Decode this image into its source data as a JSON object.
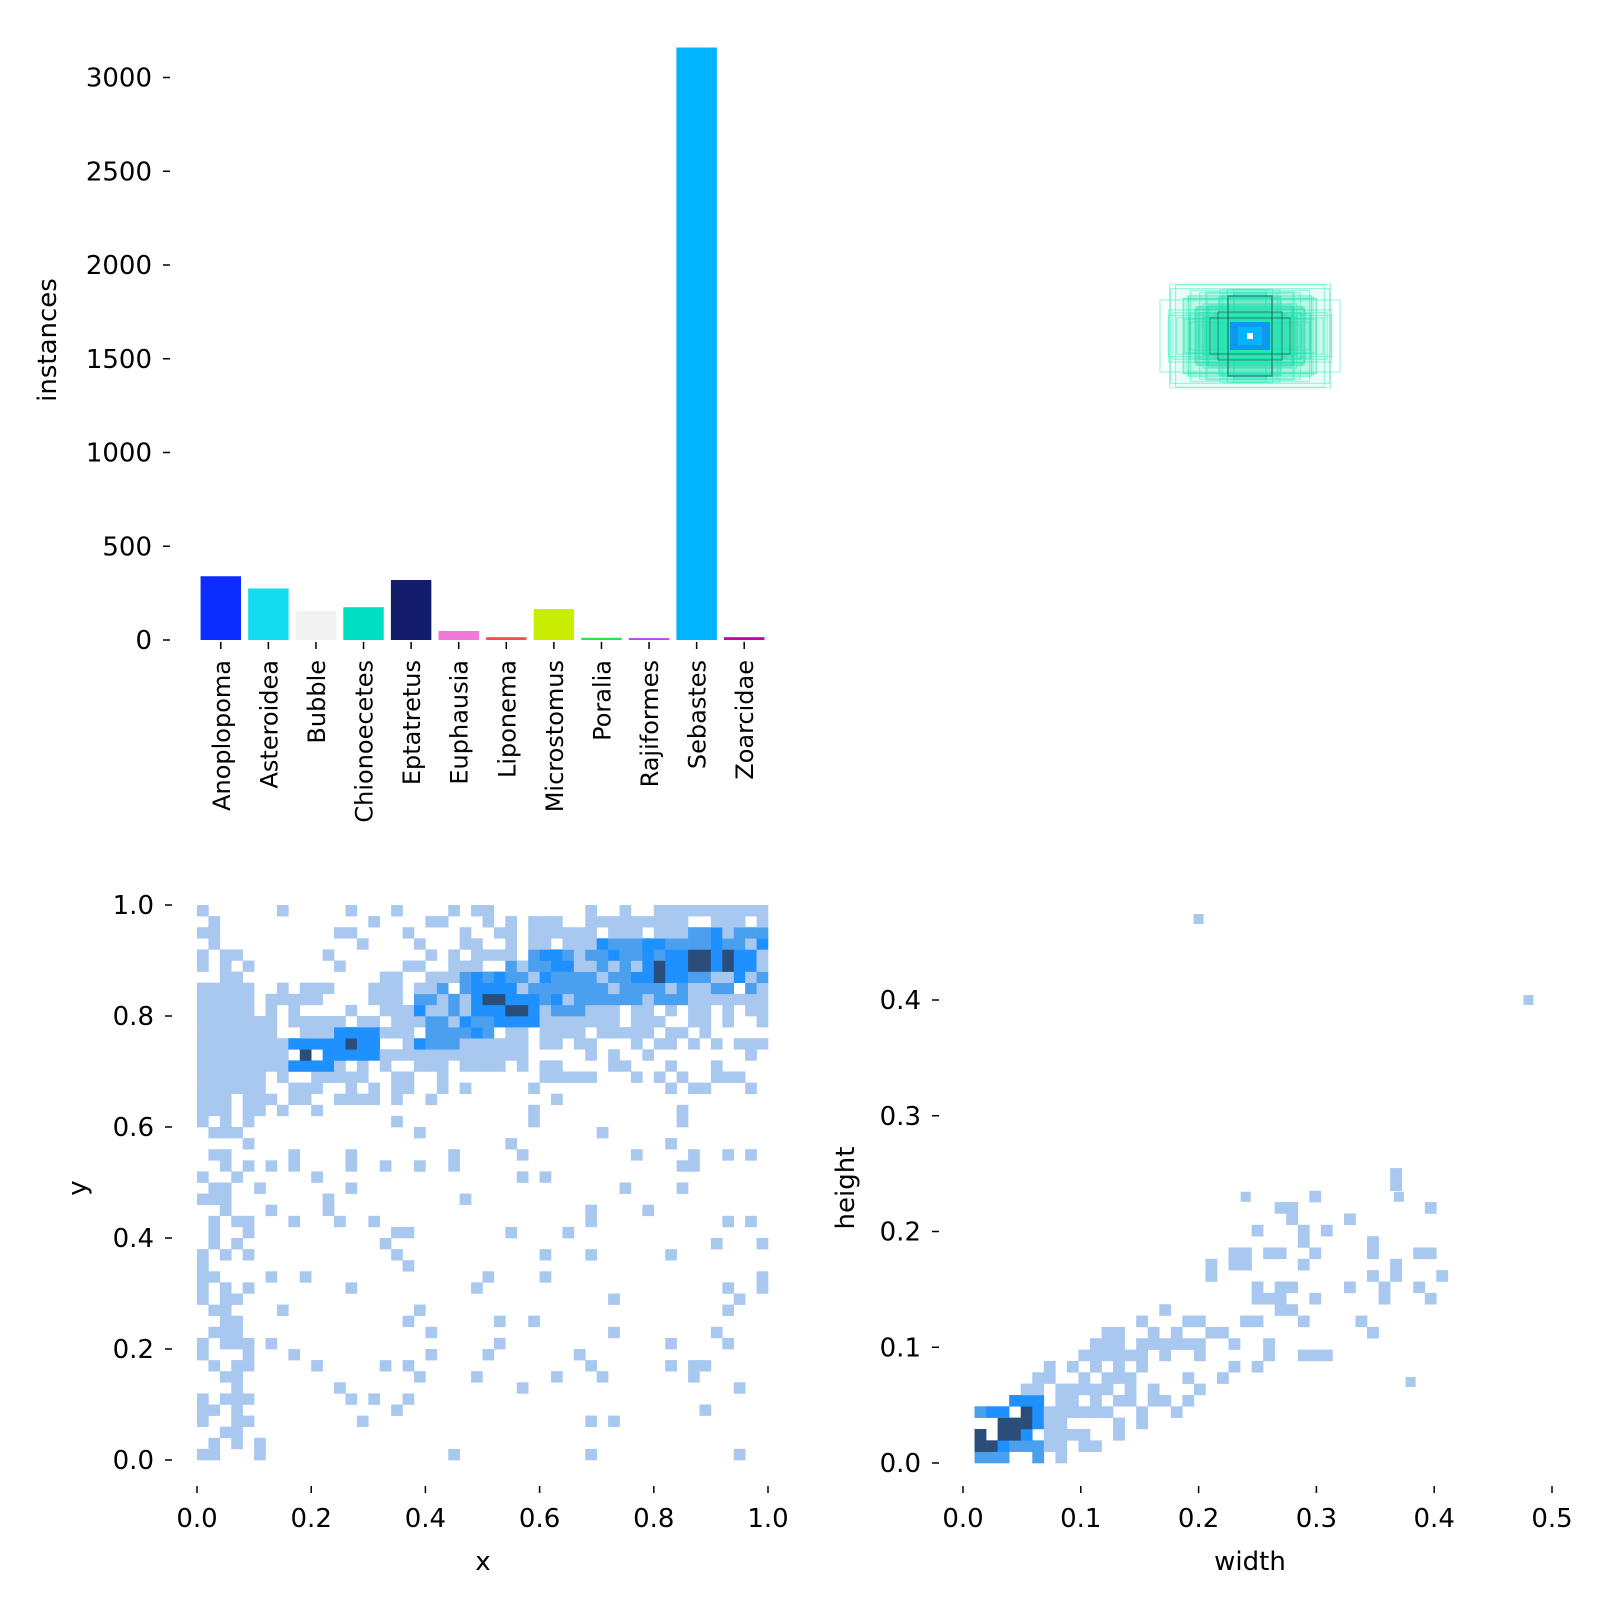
{
  "chart_data": [
    {
      "type": "bar",
      "ylabel": "instances",
      "categories": [
        "Anoplopoma",
        "Asteroidea",
        "Bubble",
        "Chionoecetes",
        "Eptatretus",
        "Euphausia",
        "Liponema",
        "Microstomus",
        "Poralia",
        "Rajiformes",
        "Sebastes",
        "Zoarcidae"
      ],
      "values": [
        340,
        275,
        155,
        175,
        320,
        48,
        15,
        165,
        12,
        10,
        3160,
        15
      ],
      "colors": [
        "#0d2cff",
        "#12dced",
        "#f2f2f2",
        "#00e0c0",
        "#141d6a",
        "#f07ad8",
        "#ff4a4a",
        "#caee00",
        "#22e840",
        "#c040f0",
        "#00b4ff",
        "#c800a8"
      ],
      "ylim": [
        0,
        3200
      ],
      "yticks": [
        "0",
        "500",
        "1000",
        "1500",
        "2000",
        "2500",
        "3000"
      ],
      "grid": false
    },
    {
      "type": "rectangles",
      "colors": [
        "#1de9b6",
        "#0a84ff",
        "#00b4ff",
        "#1f2a44"
      ]
    },
    {
      "type": "heatmap",
      "xlabel": "x",
      "ylabel": "y",
      "xlim": [
        0,
        1
      ],
      "ylim": [
        0,
        1
      ],
      "xticks": [
        "0.0",
        "0.2",
        "0.4",
        "0.6",
        "0.8",
        "1.0"
      ],
      "yticks": [
        "0.0",
        "0.2",
        "0.4",
        "0.6",
        "0.8",
        "1.0"
      ],
      "bins": 50,
      "dense_band": [
        [
          0.0,
          0.74
        ],
        [
          0.2,
          0.74
        ],
        [
          0.27,
          0.75
        ],
        [
          0.4,
          0.8
        ],
        [
          0.52,
          0.82
        ],
        [
          0.6,
          0.86
        ],
        [
          0.8,
          0.88
        ],
        [
          0.92,
          0.9
        ],
        [
          1.0,
          0.9
        ]
      ],
      "hotspots": [
        [
          0.2,
          0.73
        ],
        [
          0.27,
          0.75
        ],
        [
          0.52,
          0.83
        ],
        [
          0.56,
          0.81
        ],
        [
          0.81,
          0.88
        ],
        [
          0.88,
          0.9
        ],
        [
          0.93,
          0.9
        ]
      ],
      "colormap": [
        "#a8c8f0",
        "#4aa0ee",
        "#1e90ff",
        "#2a4d7a"
      ]
    },
    {
      "type": "heatmap",
      "xlabel": "width",
      "ylabel": "height",
      "xlim": [
        0,
        0.5
      ],
      "ylim": [
        0,
        0.45
      ],
      "xticks": [
        "0.0",
        "0.1",
        "0.2",
        "0.3",
        "0.4",
        "0.5"
      ],
      "yticks": [
        "0.0",
        "0.1",
        "0.2",
        "0.3",
        "0.4"
      ],
      "outliers": [
        [
          0.2,
          0.47
        ],
        [
          0.48,
          0.4
        ],
        [
          0.37,
          0.23
        ],
        [
          0.24,
          0.23
        ],
        [
          0.38,
          0.07
        ]
      ],
      "hotspots": [
        [
          0.02,
          0.02
        ],
        [
          0.04,
          0.03
        ],
        [
          0.05,
          0.04
        ]
      ],
      "colormap": [
        "#a8c8f0",
        "#4aa0ee",
        "#1e90ff",
        "#2a4d7a"
      ]
    }
  ]
}
